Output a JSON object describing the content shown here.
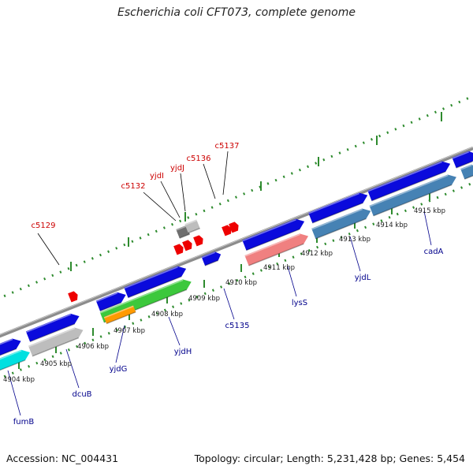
{
  "title": "Escherichia coli CFT073, complete genome",
  "footer": {
    "accession": "Accession: NC_004431",
    "topology": "Topology: circular; Length: 5,231,428 bp; Genes: 5,454"
  },
  "colors": {
    "backbone": "#8c8c8c",
    "tick": "#2e8b2e",
    "label_top": "#cc0000",
    "label_bottom": "#00008b",
    "blue": "#0a0adc",
    "gray": "#bdbdbd",
    "darkgray": "#6e6e6e",
    "cyan": "#00e0e0",
    "green": "#3cc83c",
    "orange": "#ff9a00",
    "steel": "#4682b4",
    "salmon": "#f08080",
    "red": "#ee0000"
  },
  "kbp_ticks": [
    "4904 kbp",
    "4905 kbp",
    "4906 kbp",
    "4907 kbp",
    "4908 kbp",
    "4909 kbp",
    "4910 kbp",
    "4911 kbp",
    "4912 kbp",
    "4913 kbp",
    "4914 kbp",
    "4915 kbp"
  ],
  "top_labels": [
    "c5129",
    "c5132",
    "yjdI",
    "yjdJ",
    "c5136",
    "c5137"
  ],
  "bottom_labels": [
    "fumB",
    "dcuB",
    "yjdG",
    "yjdH",
    "c5135",
    "lysS",
    "yjdL",
    "cadA"
  ]
}
